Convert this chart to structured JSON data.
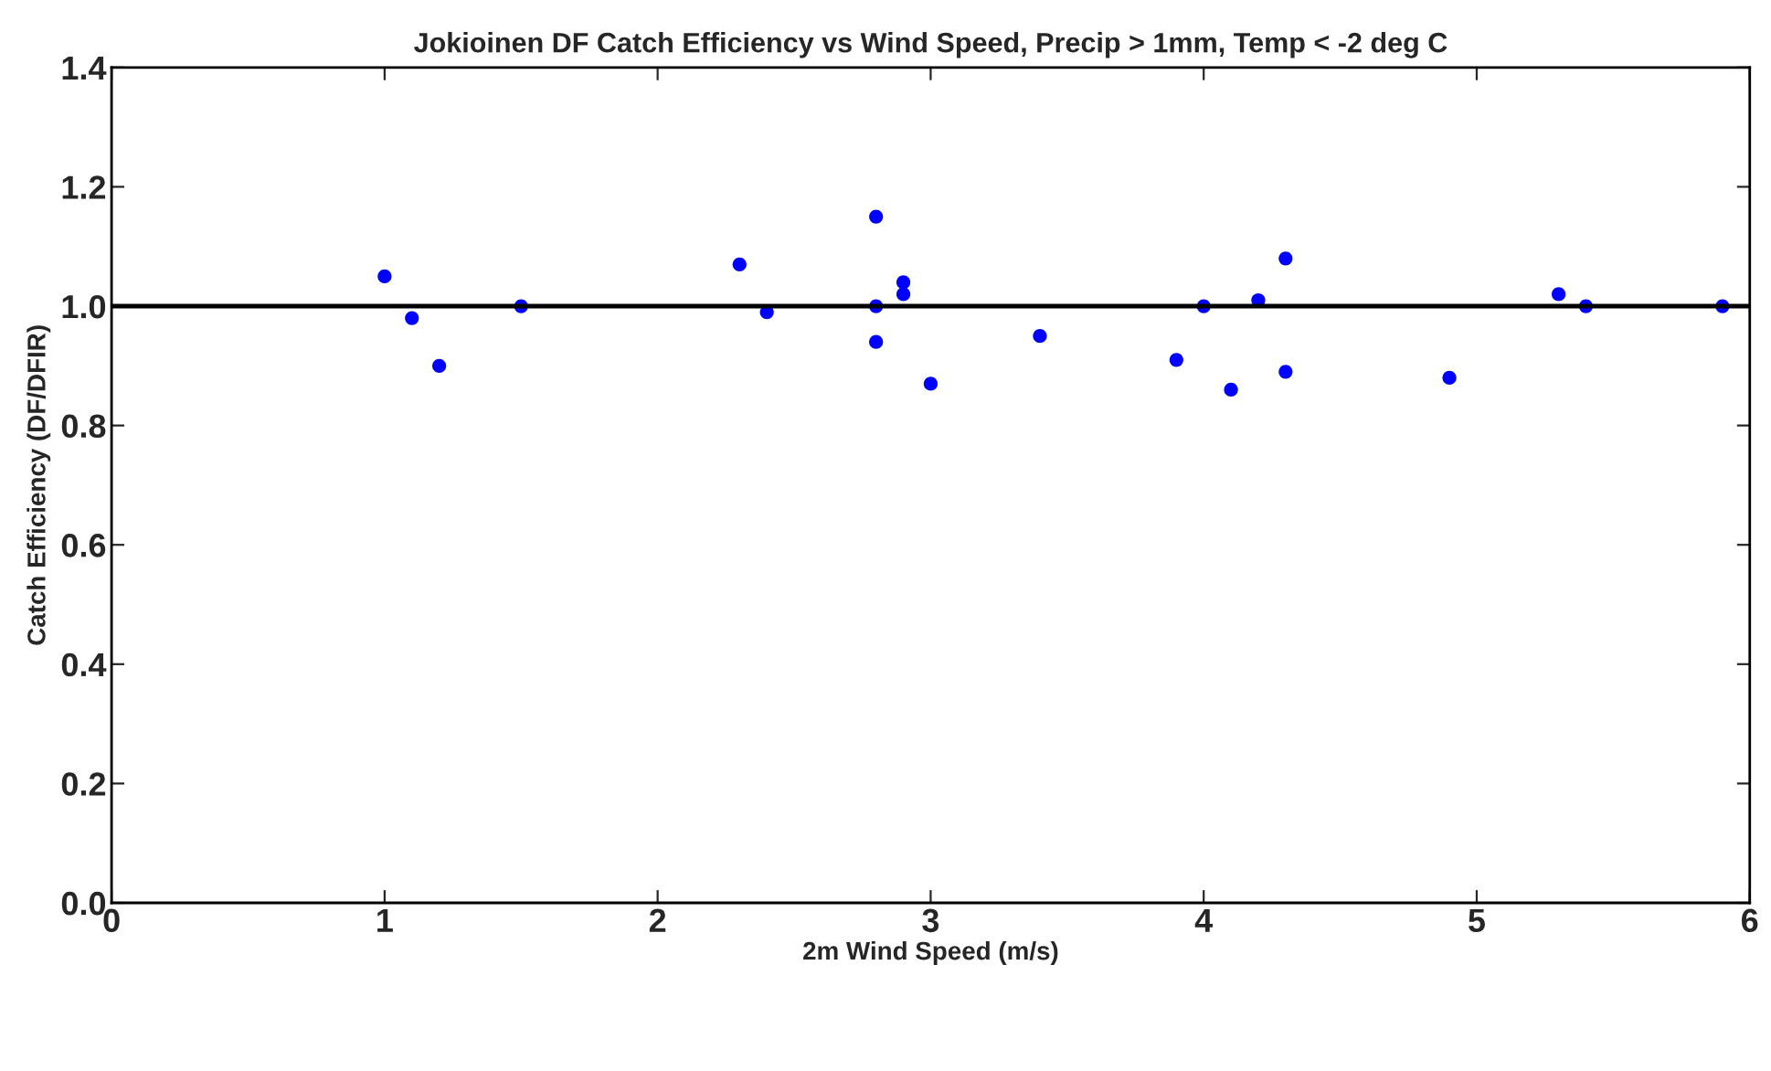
{
  "chart_data": {
    "type": "scatter",
    "title": "Jokioinen DF Catch Efficiency vs Wind Speed, Precip > 1mm, Temp < -2 deg C",
    "xlabel": "2m Wind Speed (m/s)",
    "ylabel": "Catch Efficiency (DF/DFIR)",
    "x": [
      1.0,
      1.1,
      1.2,
      1.5,
      2.3,
      2.4,
      2.8,
      2.8,
      2.8,
      2.9,
      2.9,
      3.0,
      3.4,
      3.9,
      4.0,
      4.1,
      4.2,
      4.3,
      4.3,
      4.9,
      5.3,
      5.4,
      5.9
    ],
    "series": [
      {
        "color": "#0000ff",
        "values": [
          1.05,
          0.98,
          0.9,
          1.0,
          1.07,
          0.99,
          1.15,
          1.0,
          0.94,
          1.04,
          1.02,
          0.87,
          0.95,
          0.91,
          1.0,
          0.86,
          1.01,
          1.08,
          0.89,
          0.88,
          1.02,
          1.0,
          1.0
        ]
      }
    ],
    "marker": "circle",
    "xlim": [
      0,
      6
    ],
    "ylim": [
      0,
      1.4
    ],
    "xticks": [
      0,
      1,
      2,
      3,
      4,
      5,
      6
    ],
    "yticks": [
      {
        "value": 0,
        "label": "0.0"
      },
      0.2,
      0.4,
      0.6,
      0.8,
      {
        "value": 1,
        "label": "1.0"
      },
      1.2,
      1.4
    ],
    "ref_lines": [
      {
        "axis": "y",
        "value": 1,
        "color": "#000000",
        "line_style": "solid"
      }
    ],
    "grid": false,
    "legend": false
  }
}
